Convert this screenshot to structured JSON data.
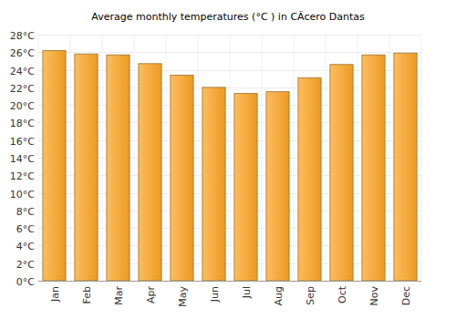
{
  "chart_data": {
    "type": "bar",
    "title": "Average monthly temperatures (°C ) in CÃcero Dantas",
    "categories": [
      "Jan",
      "Feb",
      "Mar",
      "Apr",
      "May",
      "Jun",
      "Jul",
      "Aug",
      "Sep",
      "Oct",
      "Nov",
      "Dec"
    ],
    "values": [
      26.2,
      25.8,
      25.7,
      24.7,
      23.4,
      22.0,
      21.3,
      21.5,
      23.1,
      24.6,
      25.7,
      25.9
    ],
    "color": "#ffa726",
    "ylim": [
      0,
      28
    ],
    "yticks": [
      {
        "value": 0,
        "label": "0°C"
      },
      {
        "value": 2,
        "label": "2°C"
      },
      {
        "value": 4,
        "label": "4°C"
      },
      {
        "value": 6,
        "label": "6°C"
      },
      {
        "value": 8,
        "label": "8°C"
      },
      {
        "value": 10,
        "label": "10°C"
      },
      {
        "value": 12,
        "label": "12°C"
      },
      {
        "value": 14,
        "label": "14°C"
      },
      {
        "value": 16,
        "label": "16°C"
      },
      {
        "value": 18,
        "label": "18°C"
      },
      {
        "value": 20,
        "label": "20°C"
      },
      {
        "value": 22,
        "label": "22°C"
      },
      {
        "value": 24,
        "label": "24°C"
      },
      {
        "value": 26,
        "label": "26°C"
      },
      {
        "value": 28,
        "label": "28°C"
      }
    ],
    "grid": true
  }
}
